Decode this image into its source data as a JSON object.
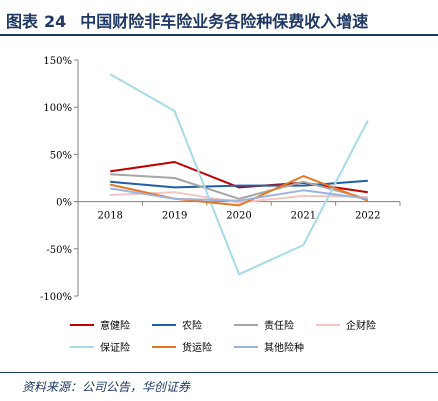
{
  "figure_label": "图表",
  "figure_number": "24",
  "figure_title": "中国财险非车险业务各险种保费收入增速",
  "source": "资料来源：公司公告，华创证券",
  "colors": {
    "title": "#1f3864",
    "axis": "#808080"
  },
  "chart_data": {
    "type": "line",
    "x": [
      "2018",
      "2019",
      "2020",
      "2021",
      "2022"
    ],
    "y_ticks": [
      "150%",
      "100%",
      "50%",
      "0%",
      "-50%",
      "-100%"
    ],
    "ylim": [
      -100,
      150
    ],
    "y_unit": "%",
    "grid": false,
    "legend_position": "bottom",
    "series": [
      {
        "name": "意健险",
        "color": "#c00000",
        "values": [
          32,
          42,
          15,
          20,
          10
        ]
      },
      {
        "name": "农险",
        "color": "#1f5fa8",
        "values": [
          21,
          15,
          17,
          17,
          22
        ]
      },
      {
        "name": "责任险",
        "color": "#a6a6a6",
        "values": [
          29,
          25,
          3,
          21,
          3
        ]
      },
      {
        "name": "企财险",
        "color": "#f2c4c4",
        "values": [
          7,
          10,
          -1,
          6,
          5
        ]
      },
      {
        "name": "保证险",
        "color": "#a6dbea",
        "values": [
          135,
          96,
          -77,
          -46,
          86
        ]
      },
      {
        "name": "货运险",
        "color": "#e87722",
        "values": [
          18,
          3,
          -4,
          27,
          1
        ]
      },
      {
        "name": "其他险种",
        "color": "#9bb3dd",
        "values": [
          14,
          3,
          1,
          12,
          3
        ]
      }
    ]
  }
}
